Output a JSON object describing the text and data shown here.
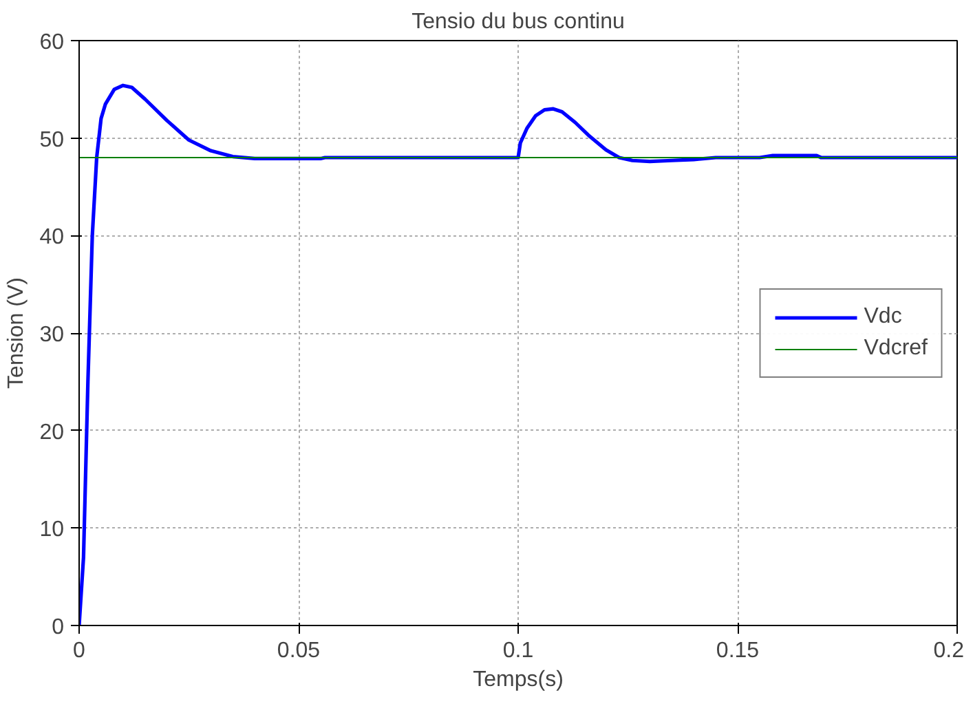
{
  "chart_data": {
    "type": "line",
    "title": "Tensio du bus continu",
    "xlabel": "Temps(s)",
    "ylabel": "Tension (V)",
    "xlim": [
      0,
      0.2
    ],
    "xticks": [
      0,
      0.05,
      0.1,
      0.15,
      0.2
    ],
    "ylim": [
      0,
      60
    ],
    "yticks": [
      0,
      10,
      20,
      30,
      40,
      50,
      60
    ],
    "grid": true,
    "legend": "right",
    "series": [
      {
        "name": "Vdc",
        "color": "#0000ff",
        "x": [
          0,
          0.001,
          0.002,
          0.003,
          0.004,
          0.005,
          0.006,
          0.008,
          0.01,
          0.012,
          0.015,
          0.02,
          0.025,
          0.03,
          0.035,
          0.04,
          0.055,
          0.056,
          0.1,
          0.1005,
          0.102,
          0.104,
          0.106,
          0.108,
          0.11,
          0.113,
          0.116,
          0.12,
          0.123,
          0.126,
          0.13,
          0.135,
          0.14,
          0.145,
          0.155,
          0.158,
          0.168,
          0.169,
          0.2
        ],
        "values": [
          0,
          7,
          25,
          40,
          48,
          52,
          53.5,
          55,
          55.4,
          55.2,
          54,
          51.8,
          49.8,
          48.7,
          48.1,
          47.9,
          47.9,
          48,
          48,
          49.5,
          51,
          52.3,
          52.9,
          53,
          52.7,
          51.6,
          50.3,
          48.8,
          48,
          47.7,
          47.6,
          47.7,
          47.8,
          48,
          48,
          48.2,
          48.2,
          48,
          48
        ]
      },
      {
        "name": "Vdcref",
        "color": "#008000",
        "x": [
          0,
          0.2
        ],
        "values": [
          48,
          48
        ]
      }
    ]
  }
}
